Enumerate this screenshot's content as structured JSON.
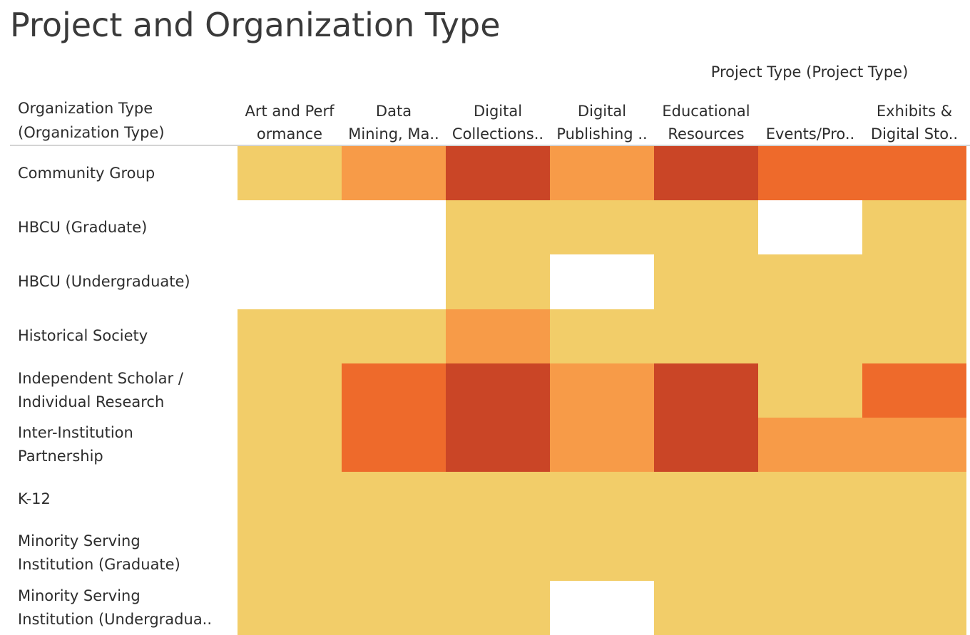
{
  "title": "Project and Organization Type",
  "column_group_label": "Project Type (Project Type)",
  "row_header_label": "Organization Type\n(Organization Type)",
  "colors": {
    "level_1": "#f2cd69",
    "level_2": "#f79b48",
    "level_3": "#ee6a2b",
    "level_4": "#ca4526",
    "empty": "#ffffff"
  },
  "chart_data": {
    "type": "heatmap",
    "title": "Project and Organization Type",
    "xlabel": "Project Type (Project Type)",
    "ylabel": "Organization Type\n(Organization Type)",
    "columns": [
      "Art and Perf\normance",
      "Data\nMining, Ma..",
      "Digital\nCollections..",
      "Digital\nPublishing ..",
      "Educational\nResources",
      "\nEvents/Pro..",
      "Exhibits &\nDigital Sto.."
    ],
    "rows": [
      "Community Group",
      "HBCU (Graduate)",
      "HBCU (Undergraduate)",
      "Historical Society",
      "Independent Scholar /\nIndividual Research",
      "Inter-Institution\nPartnership",
      "K-12",
      "Minority Serving\nInstitution (Graduate)",
      "Minority Serving\nInstitution (Undergradua.."
    ],
    "values": [
      [
        1,
        2,
        4,
        2,
        4,
        3,
        3
      ],
      [
        0,
        0,
        1,
        1,
        1,
        0,
        1
      ],
      [
        0,
        0,
        1,
        0,
        1,
        1,
        1
      ],
      [
        1,
        1,
        2,
        1,
        1,
        1,
        1
      ],
      [
        1,
        3,
        4,
        2,
        4,
        1,
        3
      ],
      [
        1,
        3,
        4,
        2,
        4,
        2,
        2
      ],
      [
        1,
        1,
        1,
        1,
        1,
        1,
        1
      ],
      [
        1,
        1,
        1,
        1,
        1,
        1,
        1
      ],
      [
        1,
        1,
        1,
        0,
        1,
        1,
        1
      ]
    ],
    "value_scale": "0 = no projects, 1-4 = increasing count"
  }
}
